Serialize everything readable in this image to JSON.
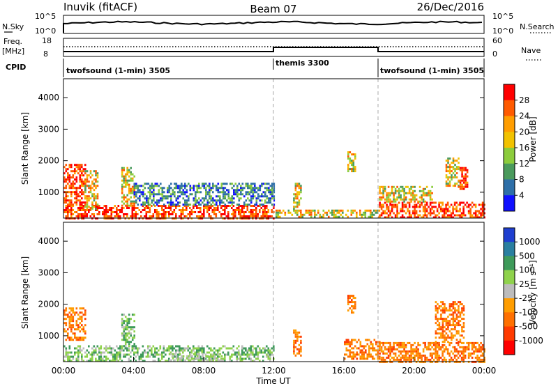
{
  "header": {
    "left": "Inuvik (fitACF)",
    "center": "Beam 07",
    "right": "26/Dec/2016"
  },
  "top_panels": {
    "nsky_label": "N.Sky",
    "nsearch_label": "N.Search",
    "nsky_ticks": [
      "10^5",
      "10^0"
    ],
    "nsky_right_ticks": [
      "10^5",
      "10^0"
    ],
    "freq_label": "Freq.",
    "freq_unit": "[MHz]",
    "freq_ticks": [
      "18",
      "8"
    ],
    "nave_label": "Nave",
    "nave_ticks": [
      "60",
      "0"
    ],
    "cpid_label": "CPID",
    "cpid_segments": [
      {
        "label": "twofsound (1-min) 3505",
        "start_hour": 0,
        "end_hour": 12
      },
      {
        "label": "themis 3300",
        "start_hour": 12,
        "end_hour": 18
      },
      {
        "label": "twofsound (1-min) 3505",
        "start_hour": 18,
        "end_hour": 24
      }
    ]
  },
  "chart_data": [
    {
      "type": "heatmap",
      "name": "power",
      "ylabel": "Slant Range [km]",
      "yticks": [
        1000,
        2000,
        3000,
        4000
      ],
      "ylim": [
        180,
        4600
      ],
      "xlim": [
        0,
        24
      ],
      "colorbar_label": "Power [dB]",
      "colorbar_ticks": [
        "28",
        "24",
        "20",
        "16",
        "12",
        "8",
        "4"
      ],
      "colorbar_colors": [
        "#ff0000",
        "#ff5a00",
        "#ff9d00",
        "#f2c200",
        "#8ccc3c",
        "#4a9a5c",
        "#2e6fa8",
        "#1010ff"
      ],
      "dashed_lines_hours": [
        12,
        18
      ],
      "echo_regions": [
        {
          "t0": 0.0,
          "t1": 12.0,
          "r0": 200,
          "r1": 600,
          "level": "high"
        },
        {
          "t0": 0.0,
          "t1": 1.2,
          "r0": 600,
          "r1": 1900,
          "level": "high"
        },
        {
          "t0": 1.2,
          "t1": 1.9,
          "r0": 500,
          "r1": 1700,
          "level": "mid"
        },
        {
          "t0": 3.3,
          "t1": 4.0,
          "r0": 600,
          "r1": 1800,
          "level": "mid"
        },
        {
          "t0": 4.0,
          "t1": 12.0,
          "r0": 600,
          "r1": 1300,
          "level": "low"
        },
        {
          "t0": 12.0,
          "t1": 18.0,
          "r0": 200,
          "r1": 450,
          "level": "mid"
        },
        {
          "t0": 13.1,
          "t1": 13.5,
          "r0": 450,
          "r1": 1300,
          "level": "mid"
        },
        {
          "t0": 16.2,
          "t1": 16.6,
          "r0": 1700,
          "r1": 2300,
          "level": "mid"
        },
        {
          "t0": 18.0,
          "t1": 24.0,
          "r0": 200,
          "r1": 700,
          "level": "high"
        },
        {
          "t0": 18.0,
          "t1": 21.0,
          "r0": 700,
          "r1": 1200,
          "level": "mid"
        },
        {
          "t0": 21.8,
          "t1": 22.5,
          "r0": 1200,
          "r1": 2100,
          "level": "mid"
        },
        {
          "t0": 22.5,
          "t1": 23.0,
          "r0": 1100,
          "r1": 1800,
          "level": "high"
        }
      ]
    },
    {
      "type": "heatmap",
      "name": "velocity",
      "ylabel": "Slant Range [km]",
      "yticks": [
        1000,
        2000,
        3000,
        4000
      ],
      "ylim": [
        180,
        4600
      ],
      "xlim": [
        0,
        24
      ],
      "xticks": [
        "00:00",
        "04:00",
        "08:00",
        "12:00",
        "16:00",
        "20:00",
        "00:00"
      ],
      "xlabel": "Time UT",
      "colorbar_label": "Velocity [m s⁻¹]",
      "colorbar_ticks": [
        "1000",
        "500",
        "100",
        "25",
        "-25",
        "-100",
        "-500",
        "-1000"
      ],
      "colorbar_colors": [
        "#1f3fd0",
        "#2a7fa0",
        "#3e9a5a",
        "#8fd24c",
        "#bcbcbc",
        "#ff9d00",
        "#ff7000",
        "#ff3a00",
        "#ff0000"
      ],
      "dashed_lines_hours": [
        12,
        18
      ],
      "echo_regions": [
        {
          "t0": 0.0,
          "t1": 1.2,
          "r0": 900,
          "r1": 1900,
          "level": "neg"
        },
        {
          "t0": 0.0,
          "t1": 12.0,
          "r0": 200,
          "r1": 700,
          "level": "pos"
        },
        {
          "t0": 3.3,
          "t1": 4.0,
          "r0": 600,
          "r1": 1700,
          "level": "pos"
        },
        {
          "t0": 6.0,
          "t1": 9.0,
          "r0": 200,
          "r1": 450,
          "level": "zero"
        },
        {
          "t0": 13.1,
          "t1": 13.5,
          "r0": 400,
          "r1": 1200,
          "level": "neg"
        },
        {
          "t0": 16.2,
          "t1": 16.6,
          "r0": 1700,
          "r1": 2300,
          "level": "neg"
        },
        {
          "t0": 16.0,
          "t1": 18.0,
          "r0": 300,
          "r1": 900,
          "level": "neg"
        },
        {
          "t0": 18.0,
          "t1": 24.0,
          "r0": 200,
          "r1": 800,
          "level": "neg"
        },
        {
          "t0": 21.2,
          "t1": 22.8,
          "r0": 800,
          "r1": 2100,
          "level": "neg"
        }
      ]
    }
  ]
}
